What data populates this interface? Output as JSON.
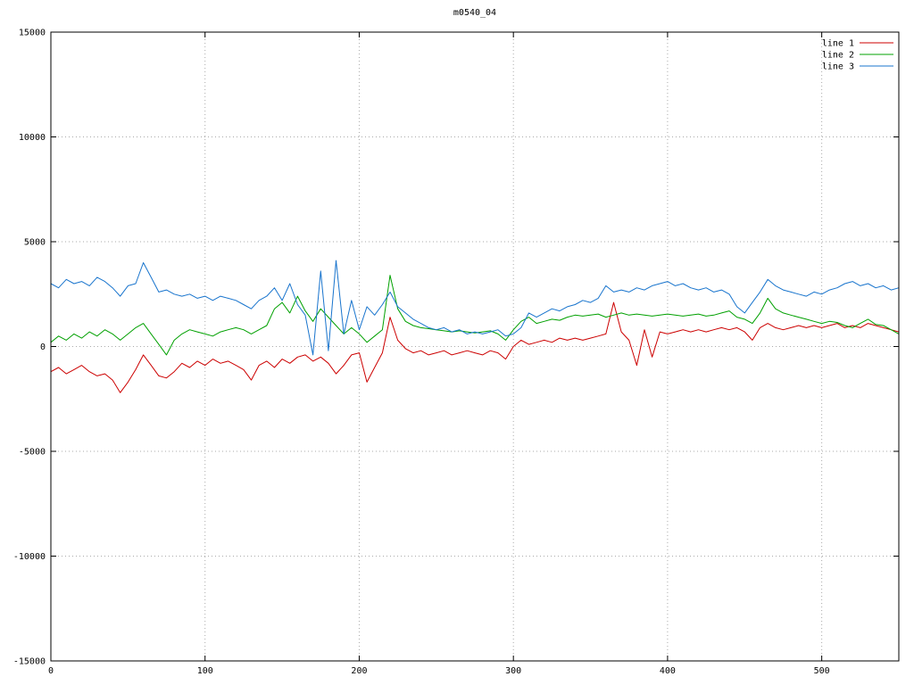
{
  "title": "m0540_04",
  "chart_data": {
    "type": "line",
    "title": "m0540_04",
    "xlabel": "",
    "ylabel": "",
    "xlim": [
      0,
      550
    ],
    "ylim": [
      -15000,
      15000
    ],
    "x_ticks": [
      0,
      100,
      200,
      300,
      400,
      500
    ],
    "y_ticks": [
      -15000,
      -10000,
      -5000,
      0,
      5000,
      10000,
      15000
    ],
    "grid": true,
    "grid_style": "dotted",
    "legend_position": "top-right",
    "background_color": "#ffffff",
    "border_color": "#000000",
    "x": [
      0,
      5,
      10,
      15,
      20,
      25,
      30,
      35,
      40,
      45,
      50,
      55,
      60,
      65,
      70,
      75,
      80,
      85,
      90,
      95,
      100,
      105,
      110,
      115,
      120,
      125,
      130,
      135,
      140,
      145,
      150,
      155,
      160,
      165,
      170,
      175,
      180,
      185,
      190,
      195,
      200,
      205,
      210,
      215,
      220,
      225,
      230,
      235,
      240,
      245,
      250,
      255,
      260,
      265,
      270,
      275,
      280,
      285,
      290,
      295,
      300,
      305,
      310,
      315,
      320,
      325,
      330,
      335,
      340,
      345,
      350,
      355,
      360,
      365,
      370,
      375,
      380,
      385,
      390,
      395,
      400,
      405,
      410,
      415,
      420,
      425,
      430,
      435,
      440,
      445,
      450,
      455,
      460,
      465,
      470,
      475,
      480,
      485,
      490,
      495,
      500,
      505,
      510,
      515,
      520,
      525,
      530,
      535,
      540,
      545,
      550
    ],
    "series": [
      {
        "name": "line 1",
        "color": "#cc0000",
        "values": [
          -1200,
          -1000,
          -1300,
          -1100,
          -900,
          -1200,
          -1400,
          -1300,
          -1600,
          -2200,
          -1700,
          -1100,
          -400,
          -900,
          -1400,
          -1500,
          -1200,
          -800,
          -1000,
          -700,
          -900,
          -600,
          -800,
          -700,
          -900,
          -1100,
          -1600,
          -900,
          -700,
          -1000,
          -600,
          -800,
          -500,
          -400,
          -700,
          -500,
          -800,
          -1300,
          -900,
          -400,
          -300,
          -1700,
          -1000,
          -300,
          1400,
          300,
          -100,
          -300,
          -200,
          -400,
          -300,
          -200,
          -400,
          -300,
          -200,
          -300,
          -400,
          -200,
          -300,
          -600,
          0,
          300,
          100,
          200,
          300,
          200,
          400,
          300,
          400,
          300,
          400,
          500,
          600,
          2100,
          700,
          300,
          -900,
          800,
          -500,
          700,
          600,
          700,
          800,
          700,
          800,
          700,
          800,
          900,
          800,
          900,
          700,
          300,
          900,
          1100,
          900,
          800,
          900,
          1000,
          900,
          1000,
          900,
          1000,
          1100,
          900,
          1000,
          900,
          1100,
          1000,
          900,
          800,
          700
        ]
      },
      {
        "name": "line 2",
        "color": "#00a000",
        "values": [
          200,
          500,
          300,
          600,
          400,
          700,
          500,
          800,
          600,
          300,
          600,
          900,
          1100,
          600,
          100,
          -400,
          300,
          600,
          800,
          700,
          600,
          500,
          700,
          800,
          900,
          800,
          600,
          800,
          1000,
          1800,
          2100,
          1600,
          2400,
          1700,
          1200,
          1800,
          1400,
          1000,
          600,
          900,
          600,
          200,
          500,
          800,
          3400,
          1800,
          1200,
          1000,
          900,
          850,
          800,
          750,
          700,
          750,
          700,
          650,
          700,
          750,
          600,
          300,
          800,
          1200,
          1400,
          1100,
          1200,
          1300,
          1250,
          1400,
          1500,
          1450,
          1500,
          1550,
          1400,
          1500,
          1600,
          1500,
          1550,
          1500,
          1450,
          1500,
          1550,
          1500,
          1450,
          1500,
          1550,
          1450,
          1500,
          1600,
          1700,
          1400,
          1300,
          1100,
          1600,
          2300,
          1800,
          1600,
          1500,
          1400,
          1300,
          1200,
          1100,
          1200,
          1150,
          1000,
          900,
          1100,
          1300,
          1050,
          1000,
          800,
          600
        ]
      },
      {
        "name": "line 3",
        "color": "#1874cd",
        "values": [
          3000,
          2800,
          3200,
          3000,
          3100,
          2900,
          3300,
          3100,
          2800,
          2400,
          2900,
          3000,
          4000,
          3300,
          2600,
          2700,
          2500,
          2400,
          2500,
          2300,
          2400,
          2200,
          2400,
          2300,
          2200,
          2000,
          1800,
          2200,
          2400,
          2800,
          2200,
          3000,
          2000,
          1500,
          -400,
          3600,
          -200,
          4100,
          600,
          2200,
          800,
          1900,
          1500,
          2000,
          2600,
          1900,
          1600,
          1300,
          1100,
          900,
          800,
          900,
          700,
          800,
          600,
          700,
          600,
          700,
          800,
          500,
          600,
          900,
          1600,
          1400,
          1600,
          1800,
          1700,
          1900,
          2000,
          2200,
          2100,
          2300,
          2900,
          2600,
          2700,
          2600,
          2800,
          2700,
          2900,
          3000,
          3100,
          2900,
          3000,
          2800,
          2700,
          2800,
          2600,
          2700,
          2500,
          1900,
          1600,
          2100,
          2600,
          3200,
          2900,
          2700,
          2600,
          2500,
          2400,
          2600,
          2500,
          2700,
          2800,
          3000,
          3100,
          2900,
          3000,
          2800,
          2900,
          2700,
          2800
        ]
      }
    ]
  }
}
